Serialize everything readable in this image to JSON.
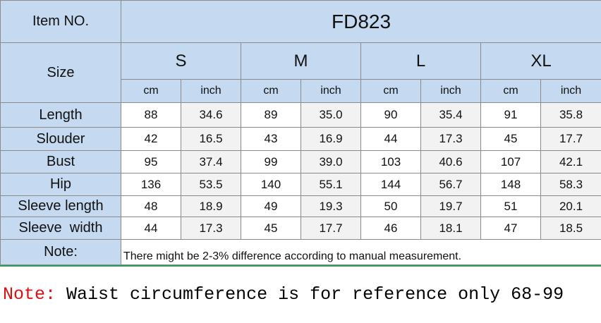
{
  "header": {
    "item_label": "Item NO.",
    "item": "FD823",
    "size_label": "Size",
    "sizes": [
      "S",
      "M",
      "L",
      "XL"
    ],
    "units": [
      "cm",
      "inch"
    ]
  },
  "table": {
    "rows": [
      {
        "label": "Length",
        "values": [
          "88",
          "34.6",
          "89",
          "35.0",
          "90",
          "35.4",
          "91",
          "35.8"
        ]
      },
      {
        "label": "Slouder",
        "values": [
          "42",
          "16.5",
          "43",
          "16.9",
          "44",
          "17.3",
          "45",
          "17.7"
        ]
      },
      {
        "label": "Bust",
        "values": [
          "95",
          "37.4",
          "99",
          "39.0",
          "103",
          "40.6",
          "107",
          "42.1"
        ]
      },
      {
        "label": "Hip",
        "values": [
          "136",
          "53.5",
          "140",
          "55.1",
          "144",
          "56.7",
          "148",
          "58.3"
        ]
      },
      {
        "label": "Sleeve length",
        "values": [
          "48",
          "18.9",
          "49",
          "19.3",
          "50",
          "19.7",
          "51",
          "20.1"
        ]
      },
      {
        "label": "Sleeve  width",
        "values": [
          "44",
          "17.3",
          "45",
          "17.7",
          "46",
          "18.1",
          "47",
          "18.5"
        ]
      }
    ]
  },
  "note": {
    "label": "Note:",
    "text": "There might be 2-3% difference according to manual measurement."
  },
  "footer": {
    "label": "Note:",
    "text": "Waist circumference is for reference only 68-99"
  }
}
